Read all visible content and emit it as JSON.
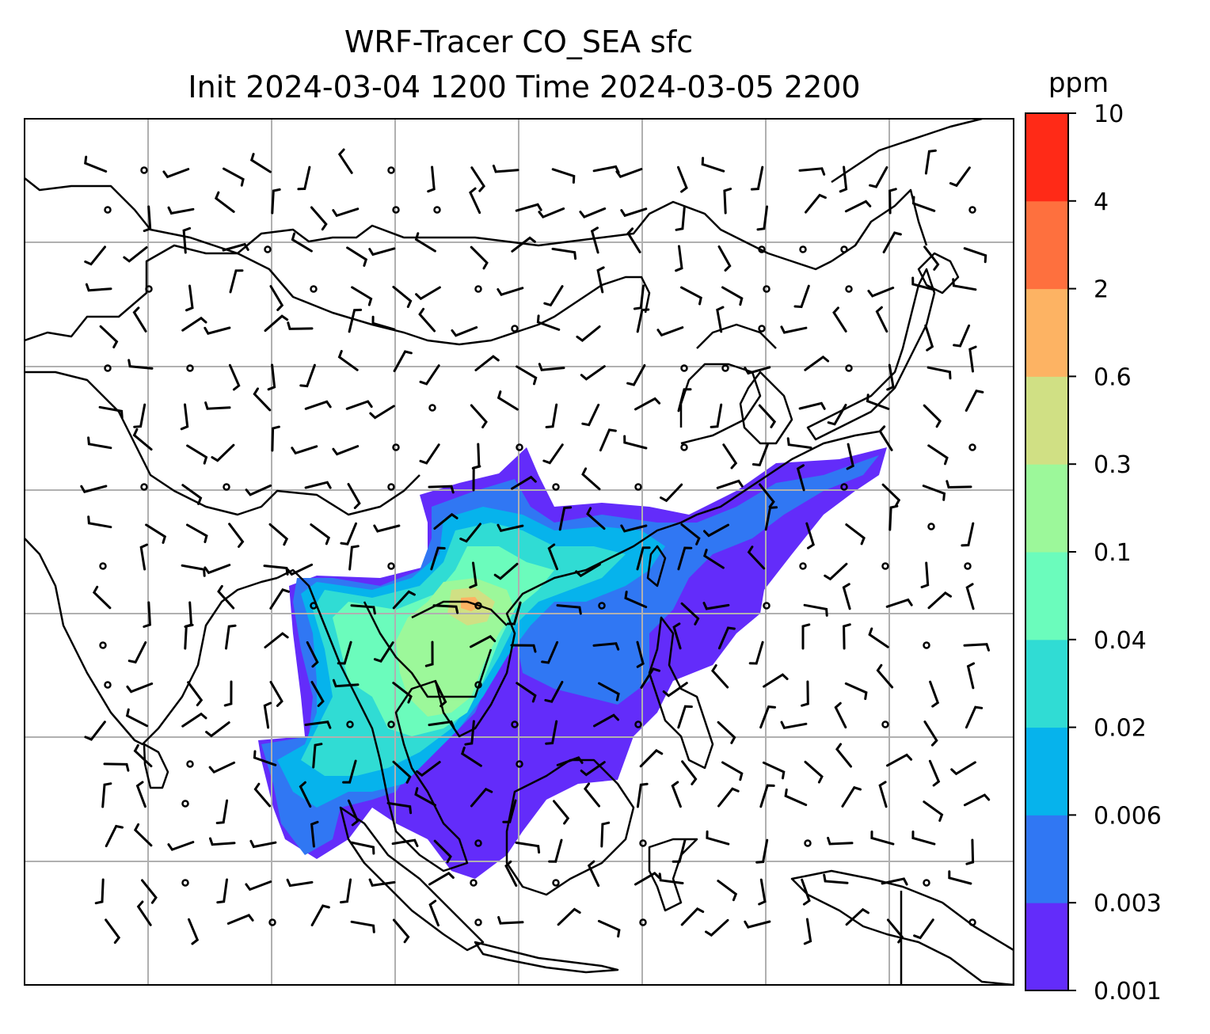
{
  "title_line1": "WRF-Tracer CO_SEA sfc",
  "title_line2": "Init 2024-03-04 1200 Time 2024-03-05 2200",
  "colorbar": {
    "unit": "ppm",
    "levels": [
      "0.001",
      "0.003",
      "0.006",
      "0.02",
      "0.04",
      "0.1",
      "0.3",
      "0.6",
      "2",
      "4",
      "10"
    ],
    "colors": [
      "#632cfa",
      "#3077f3",
      "#06b3ec",
      "#30dcd4",
      "#6bfcbc",
      "#9cf89a",
      "#d0e084",
      "#fdb363",
      "#fe703e",
      "#ff2a17"
    ]
  },
  "map": {
    "gridlines": true,
    "gridline_color": "#b0b0b0",
    "coastline_color": "#000000",
    "wind_barb_color": "#000000"
  }
}
